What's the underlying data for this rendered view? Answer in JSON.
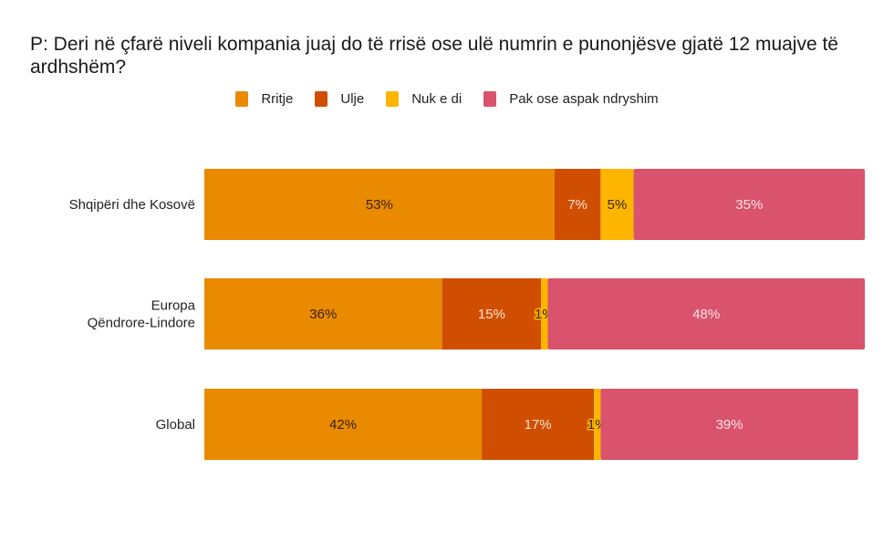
{
  "chart_data": {
    "type": "bar",
    "orientation": "horizontal",
    "stacked": true,
    "title": "P: Deri në çfarë niveli kompania juaj do të rrisë ose ulë numrin e punonjësve gjatë 12 muajve të ardhshëm?",
    "xlabel": "",
    "ylabel": "",
    "xlim": [
      0,
      100
    ],
    "grid": false,
    "legend_position": "top",
    "categories": [
      "Shqipëri dhe Kosovë",
      "Europa\nQëndrore-Lindore",
      "Global"
    ],
    "category_lines": [
      [
        "Shqipëri dhe Kosovë"
      ],
      [
        "Europa",
        "Qëndrore-Lindore"
      ],
      [
        "Global"
      ]
    ],
    "series": [
      {
        "name": "Rritje",
        "color": "#E98A00",
        "label_color": "#3a2200",
        "values": [
          53,
          36,
          42
        ]
      },
      {
        "name": "Ulje",
        "color": "#D04E00",
        "label_color": "#fbe3d3",
        "values": [
          7,
          15,
          17
        ]
      },
      {
        "name": "Nuk e di",
        "color": "#FDB500",
        "label_color": "#3a2600",
        "values": [
          5,
          1,
          1
        ]
      },
      {
        "name": "Pak ose aspak ndryshim",
        "color": "#D9536C",
        "label_color": "#fbe2e7",
        "values": [
          35,
          48,
          39
        ]
      }
    ],
    "value_suffix": "%"
  }
}
